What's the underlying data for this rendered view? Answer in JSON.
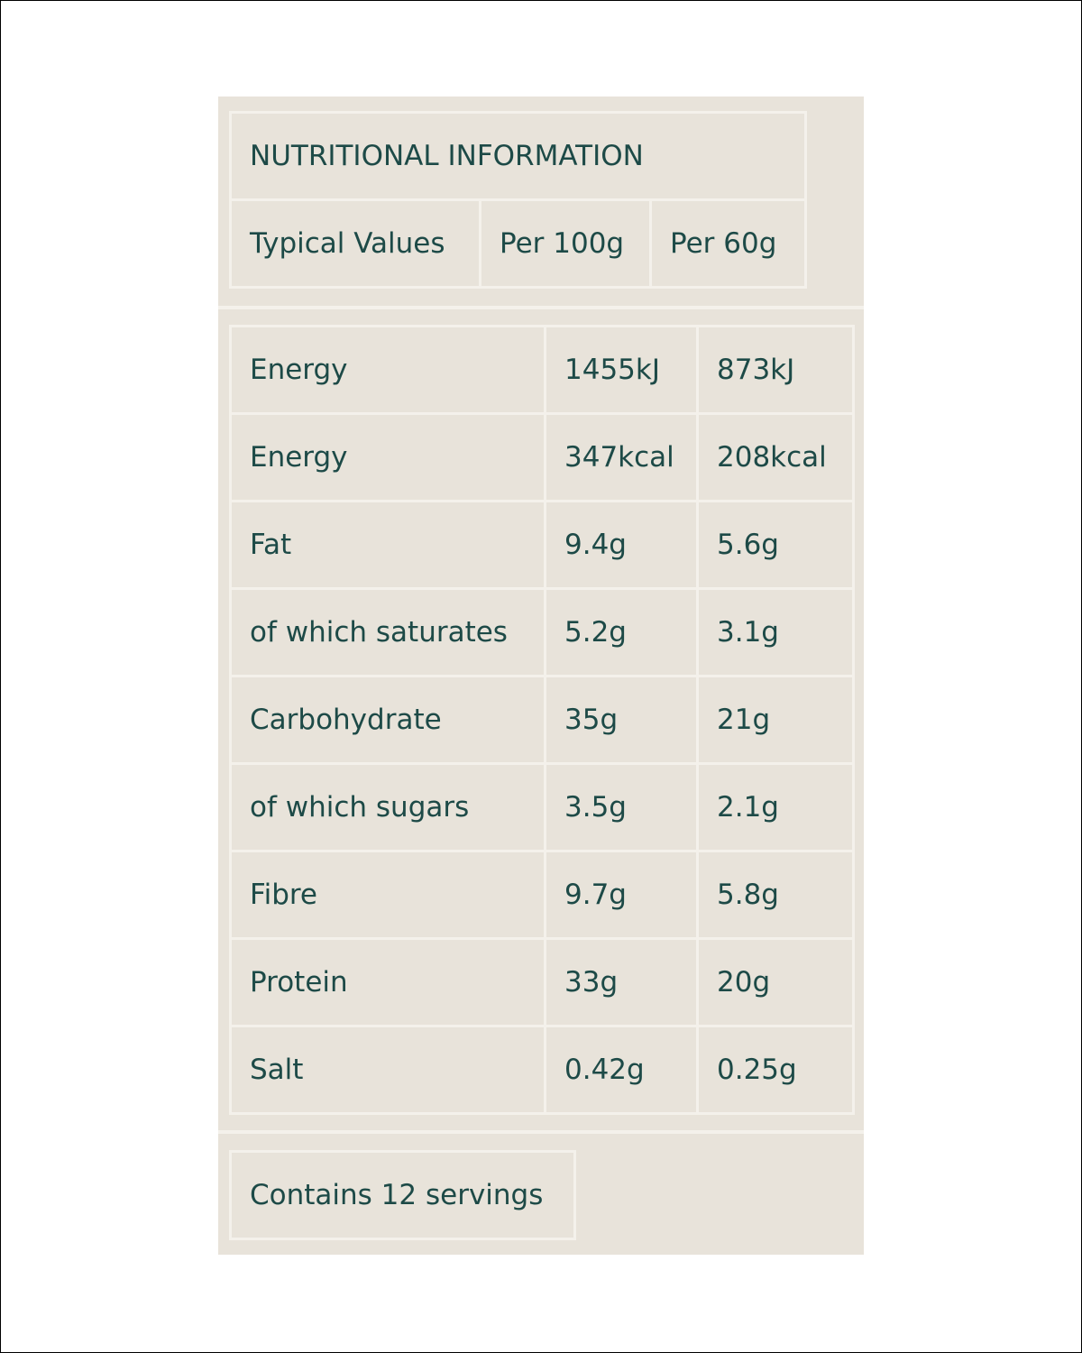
{
  "header": {
    "title": "NUTRITIONAL INFORMATION",
    "columns": [
      "Typical Values",
      "Per 100g",
      "Per 60g"
    ]
  },
  "table": {
    "rows": [
      [
        "Energy",
        "1455kJ",
        "873kJ"
      ],
      [
        "Energy",
        "347kcal",
        "208kcal"
      ],
      [
        "Fat",
        "9.4g",
        "5.6g"
      ],
      [
        "of which saturates",
        "5.2g",
        "3.1g"
      ],
      [
        "Carbohydrate",
        "35g",
        "21g"
      ],
      [
        "of which sugars",
        "3.5g",
        "2.1g"
      ],
      [
        "Fibre",
        "9.7g",
        "5.8g"
      ],
      [
        "Protein",
        "33g",
        "20g"
      ],
      [
        "Salt",
        "0.42g",
        "0.25g"
      ]
    ]
  },
  "footer": "Contains 12 servings"
}
